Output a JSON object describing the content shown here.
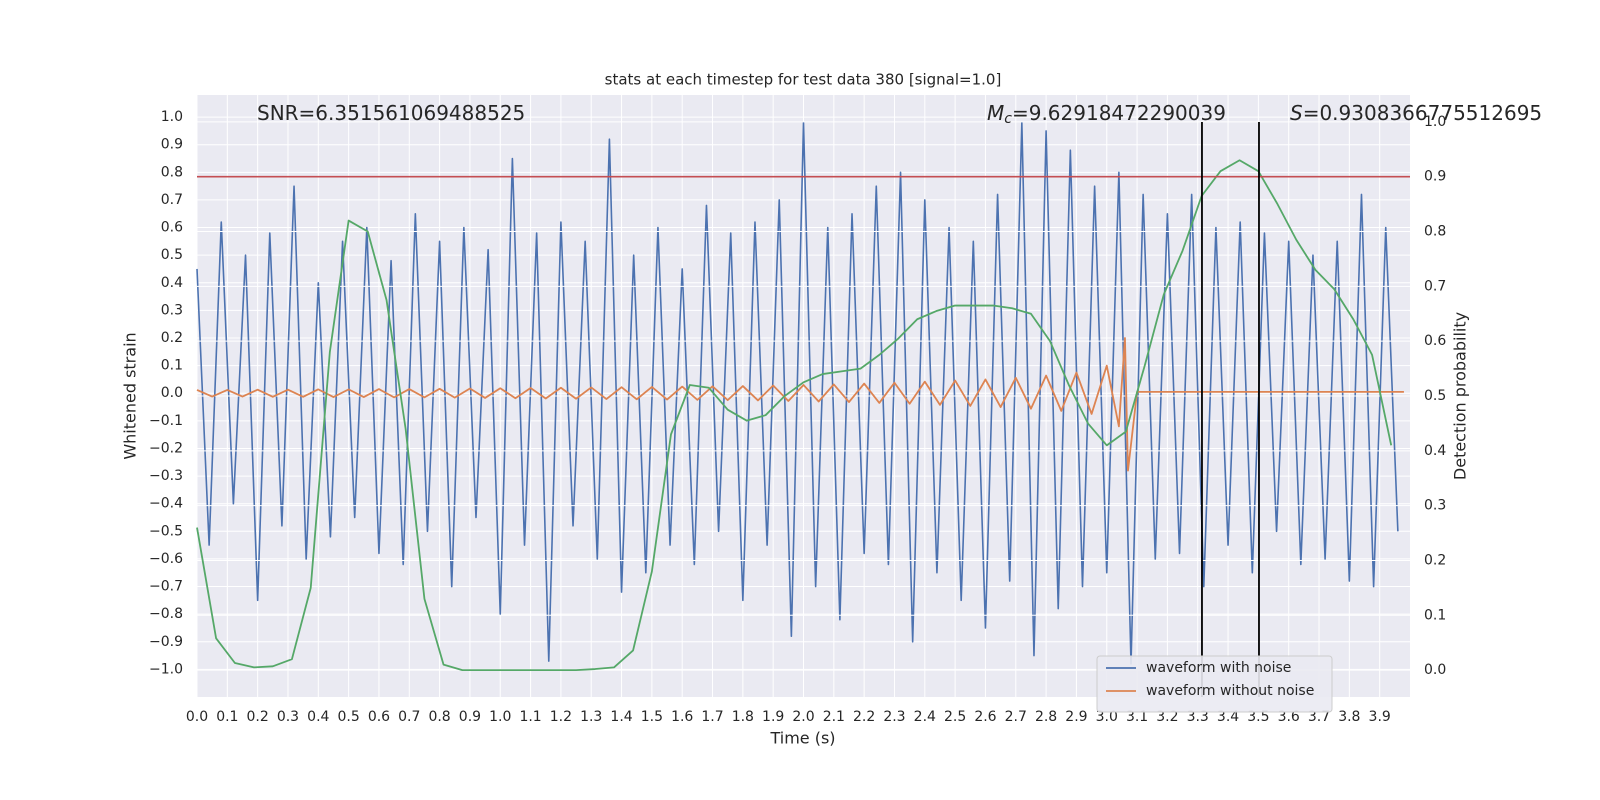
{
  "chart_data": {
    "type": "line",
    "title": "stats at each timestep for test data 380 [signal=1.0]",
    "xlabel": "Time (s)",
    "ylabel": "Whitened strain",
    "y2label": "Detection probability",
    "xlim": [
      0,
      4.0
    ],
    "ylim": [
      -1.1,
      1.08
    ],
    "y2lim": [
      -0.049,
      1.049
    ],
    "xticks": [
      {
        "value": 0,
        "label": "0.0"
      },
      0.1,
      0.2,
      0.3,
      0.4,
      0.5,
      0.6,
      0.7,
      0.8,
      0.9,
      {
        "value": 1,
        "label": "1.0"
      },
      1.1,
      1.2,
      1.3,
      1.4,
      1.5,
      1.6,
      1.7,
      1.8,
      1.9,
      {
        "value": 2,
        "label": "2.0"
      },
      2.1,
      2.2,
      2.3,
      2.4,
      2.5,
      2.6,
      2.7,
      2.8,
      2.9,
      {
        "value": 3,
        "label": "3.0"
      },
      3.1,
      3.2,
      3.3,
      3.4,
      3.5,
      3.6,
      3.7,
      3.8,
      3.9
    ],
    "yticks": [
      {
        "value": -1,
        "label": "−1.0"
      },
      {
        "value": -0.9,
        "label": "−0.9"
      },
      {
        "value": -0.8,
        "label": "−0.8"
      },
      {
        "value": -0.7,
        "label": "−0.7"
      },
      {
        "value": -0.6,
        "label": "−0.6"
      },
      {
        "value": -0.5,
        "label": "−0.5"
      },
      {
        "value": -0.4,
        "label": "−0.4"
      },
      {
        "value": -0.3,
        "label": "−0.3"
      },
      {
        "value": -0.2,
        "label": "−0.2"
      },
      {
        "value": -0.1,
        "label": "−0.1"
      },
      {
        "value": 0,
        "label": "0.0"
      },
      0.1,
      0.2,
      0.3,
      0.4,
      0.5,
      0.6,
      0.7,
      0.8,
      0.9,
      {
        "value": 1,
        "label": "1.0"
      }
    ],
    "y2ticks": [
      {
        "value": 0,
        "label": "0.0"
      },
      0.1,
      0.2,
      0.3,
      0.4,
      0.5,
      0.6,
      0.7,
      0.8,
      0.9,
      {
        "value": 1,
        "label": "1.0"
      }
    ],
    "grid": true,
    "legend": "lower right",
    "series": [
      {
        "name": "waveform with noise",
        "color": "#4c72b0",
        "x": [
          0,
          0.04,
          0.08,
          0.12,
          0.16,
          0.2,
          0.24,
          0.28,
          0.32,
          0.36,
          0.4,
          0.44,
          0.48,
          0.52,
          0.56,
          0.6,
          0.64,
          0.68,
          0.72,
          0.76,
          0.8,
          0.84,
          0.88,
          0.92,
          0.96,
          1.0,
          1.04,
          1.08,
          1.12,
          1.16,
          1.2,
          1.24,
          1.28,
          1.32,
          1.36,
          1.4,
          1.44,
          1.48,
          1.52,
          1.56,
          1.6,
          1.64,
          1.68,
          1.72,
          1.76,
          1.8,
          1.84,
          1.88,
          1.92,
          1.96,
          2.0,
          2.04,
          2.08,
          2.12,
          2.16,
          2.2,
          2.24,
          2.28,
          2.32,
          2.36,
          2.4,
          2.44,
          2.48,
          2.52,
          2.56,
          2.6,
          2.64,
          2.68,
          2.72,
          2.76,
          2.8,
          2.84,
          2.88,
          2.92,
          2.96,
          3.0,
          3.04,
          3.08,
          3.12,
          3.16,
          3.2,
          3.24,
          3.28,
          3.32,
          3.36,
          3.4,
          3.44,
          3.48,
          3.52,
          3.56,
          3.6,
          3.64,
          3.68,
          3.72,
          3.76,
          3.8,
          3.84,
          3.88,
          3.92,
          3.96
        ],
        "values": [
          0.45,
          -0.55,
          0.62,
          -0.4,
          0.5,
          -0.75,
          0.58,
          -0.48,
          0.75,
          -0.6,
          0.4,
          -0.52,
          0.55,
          -0.45,
          0.6,
          -0.58,
          0.48,
          -0.62,
          0.65,
          -0.5,
          0.55,
          -0.7,
          0.6,
          -0.45,
          0.52,
          -0.8,
          0.85,
          -0.55,
          0.58,
          -0.97,
          0.62,
          -0.48,
          0.55,
          -0.6,
          0.92,
          -0.72,
          0.5,
          -0.65,
          0.6,
          -0.55,
          0.45,
          -0.62,
          0.68,
          -0.5,
          0.58,
          -0.75,
          0.62,
          -0.55,
          0.7,
          -0.88,
          0.98,
          -0.7,
          0.6,
          -0.82,
          0.65,
          -0.58,
          0.75,
          -0.62,
          0.8,
          -0.9,
          0.7,
          -0.65,
          0.6,
          -0.75,
          0.55,
          -0.85,
          0.72,
          -0.68,
          0.98,
          -0.95,
          0.95,
          -0.78,
          0.88,
          -0.7,
          0.75,
          -0.65,
          0.8,
          -0.98,
          0.72,
          -0.6,
          0.65,
          -0.58,
          0.72,
          -0.7,
          0.6,
          -0.55,
          0.62,
          -0.65,
          0.58,
          -0.5,
          0.55,
          -0.62,
          0.5,
          -0.6,
          0.55,
          -0.68,
          0.72,
          -0.7,
          0.6,
          -0.5
        ]
      },
      {
        "name": "waveform without noise",
        "color": "#dd8452",
        "x": [
          0,
          0.05,
          0.1,
          0.15,
          0.2,
          0.25,
          0.3,
          0.35,
          0.4,
          0.45,
          0.5,
          0.55,
          0.6,
          0.65,
          0.7,
          0.75,
          0.8,
          0.85,
          0.9,
          0.95,
          1.0,
          1.05,
          1.1,
          1.15,
          1.2,
          1.25,
          1.3,
          1.35,
          1.4,
          1.45,
          1.5,
          1.55,
          1.6,
          1.65,
          1.7,
          1.75,
          1.8,
          1.85,
          1.9,
          1.95,
          2.0,
          2.05,
          2.1,
          2.15,
          2.2,
          2.25,
          2.3,
          2.35,
          2.4,
          2.45,
          2.5,
          2.55,
          2.6,
          2.65,
          2.7,
          2.75,
          2.8,
          2.85,
          2.9,
          2.95,
          3.0,
          3.04,
          3.06,
          3.07,
          3.1,
          3.98
        ],
        "values": [
          0.012,
          -0.012,
          0.012,
          -0.012,
          0.013,
          -0.013,
          0.013,
          -0.013,
          0.014,
          -0.014,
          0.014,
          -0.014,
          0.015,
          -0.015,
          0.015,
          -0.015,
          0.016,
          -0.016,
          0.017,
          -0.017,
          0.018,
          -0.018,
          0.019,
          -0.019,
          0.02,
          -0.02,
          0.021,
          -0.021,
          0.022,
          -0.022,
          0.023,
          -0.023,
          0.024,
          -0.024,
          0.025,
          -0.025,
          0.026,
          -0.026,
          0.028,
          -0.028,
          0.03,
          -0.03,
          0.032,
          -0.032,
          0.035,
          -0.035,
          0.038,
          -0.038,
          0.042,
          -0.042,
          0.046,
          -0.046,
          0.05,
          -0.05,
          0.056,
          -0.056,
          0.064,
          -0.064,
          0.075,
          -0.075,
          0.1,
          -0.12,
          0.2,
          -0.28,
          0.005,
          0.005
        ]
      },
      {
        "color": "#55a868",
        "axis": "y2",
        "x": [
          0,
          0.063,
          0.125,
          0.188,
          0.25,
          0.313,
          0.375,
          0.438,
          0.5,
          0.563,
          0.625,
          0.688,
          0.75,
          0.813,
          0.875,
          0.938,
          1.0,
          1.063,
          1.125,
          1.188,
          1.25,
          1.313,
          1.375,
          1.438,
          1.5,
          1.563,
          1.625,
          1.688,
          1.75,
          1.813,
          1.875,
          1.938,
          2.0,
          2.063,
          2.125,
          2.188,
          2.25,
          2.313,
          2.375,
          2.438,
          2.5,
          2.563,
          2.625,
          2.688,
          2.75,
          2.813,
          2.875,
          2.938,
          3.0,
          3.063,
          3.125,
          3.188,
          3.25,
          3.313,
          3.375,
          3.438,
          3.5,
          3.563,
          3.625,
          3.688,
          3.75,
          3.813,
          3.875,
          3.938
        ],
        "values": [
          0.26,
          0.058,
          0.013,
          0.005,
          0.007,
          0.02,
          0.15,
          0.58,
          0.82,
          0.8,
          0.675,
          0.44,
          0.13,
          0.01,
          0,
          0,
          0,
          0,
          0,
          0,
          0,
          0.002,
          0.005,
          0.036,
          0.18,
          0.43,
          0.52,
          0.515,
          0.475,
          0.455,
          0.465,
          0.5,
          0.525,
          0.54,
          0.545,
          0.55,
          0.575,
          0.605,
          0.64,
          0.655,
          0.665,
          0.665,
          0.665,
          0.66,
          0.65,
          0.6,
          0.52,
          0.45,
          0.41,
          0.435,
          0.555,
          0.685,
          0.765,
          0.865,
          0.91,
          0.93,
          0.91,
          0.85,
          0.785,
          0.73,
          0.695,
          0.64,
          0.575,
          0.41
        ]
      }
    ],
    "hlines": [
      {
        "value": 0.9,
        "axis": "y2",
        "color": "#c44e52"
      }
    ],
    "vlines": [
      {
        "value": 3.314,
        "color": "#000000"
      },
      {
        "value": 3.502,
        "color": "#000000"
      }
    ],
    "annotations": [
      {
        "text": "SNR=6.351561069488525"
      },
      {
        "symbol": "M",
        "subscript": "c",
        "text": "=9.62918472290039"
      },
      {
        "symbol": "S",
        "text": "=0.9308366775512695"
      }
    ]
  }
}
